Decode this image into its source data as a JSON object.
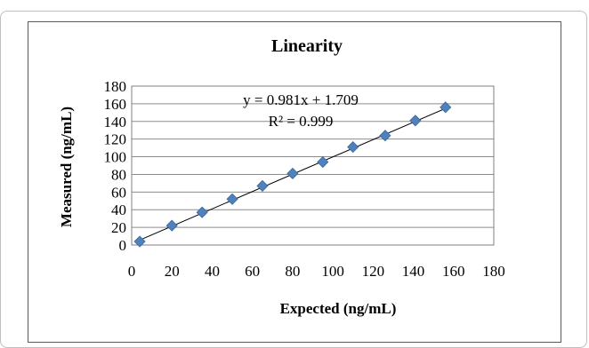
{
  "chart_data": {
    "type": "scatter",
    "title": "Linearity",
    "xlabel": "Expected (ng/mL)",
    "ylabel": "Measured (ng/mL)",
    "xlim": [
      0,
      180
    ],
    "ylim": [
      0,
      180
    ],
    "xticks": [
      0,
      20,
      40,
      60,
      80,
      100,
      120,
      140,
      160,
      180
    ],
    "yticks": [
      0,
      20,
      40,
      60,
      80,
      100,
      120,
      140,
      160,
      180
    ],
    "grid": "horizontal",
    "legend": "none",
    "series": [
      {
        "marker": "diamond",
        "color": "#4f81bd",
        "points": [
          {
            "x": 4,
            "y": 4
          },
          {
            "x": 20,
            "y": 22
          },
          {
            "x": 35,
            "y": 37
          },
          {
            "x": 50,
            "y": 52
          },
          {
            "x": 65,
            "y": 67
          },
          {
            "x": 80,
            "y": 81
          },
          {
            "x": 95,
            "y": 94
          },
          {
            "x": 110,
            "y": 111
          },
          {
            "x": 126,
            "y": 124
          },
          {
            "x": 141,
            "y": 141
          },
          {
            "x": 156,
            "y": 156
          }
        ]
      }
    ],
    "trendline": {
      "slope": 0.981,
      "intercept": 1.709,
      "x_range": [
        4,
        156
      ],
      "equation_text": "y = 0.981x + 1.709",
      "r2_text": "R² = 0.999"
    }
  }
}
